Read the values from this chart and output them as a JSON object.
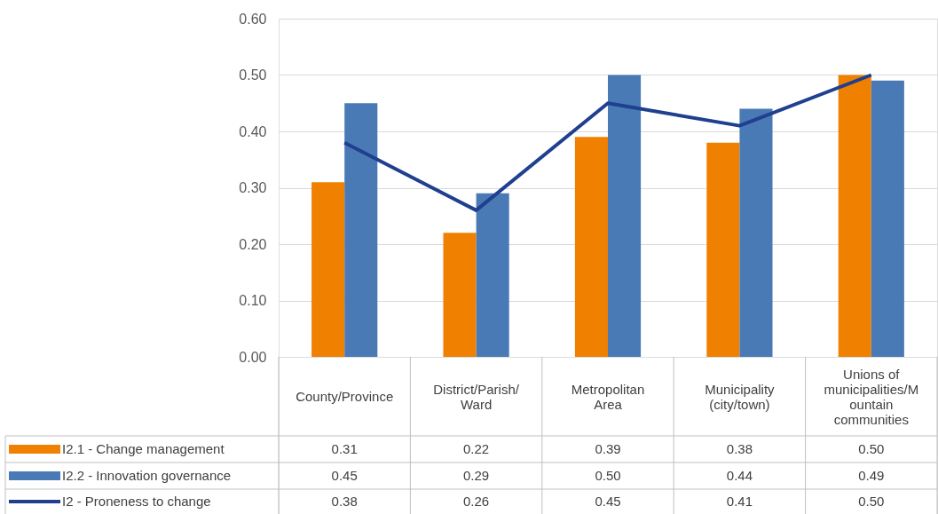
{
  "chart_data": {
    "type": "bar",
    "categories": [
      "County/Province",
      "District/Parish/Ward",
      "Metropolitan Area",
      "Municipality (city/town)",
      "Unions of municipalities/Mountain communities"
    ],
    "series": [
      {
        "name": "I2.1 - Change management",
        "color": "#f08000",
        "values": [
          0.31,
          0.22,
          0.39,
          0.38,
          0.5
        ],
        "value_labels": [
          "0.31",
          "0.22",
          "0.39",
          "0.38",
          "0.50"
        ]
      },
      {
        "name": "I2.2 - Innovation governance",
        "color": "#4a7ab5",
        "values": [
          0.45,
          0.29,
          0.5,
          0.44,
          0.49
        ],
        "value_labels": [
          "0.45",
          "0.29",
          "0.50",
          "0.44",
          "0.49"
        ]
      },
      {
        "name": "I2 - Proneness to change",
        "type": "line",
        "color": "#1f3f8f",
        "values": [
          0.38,
          0.26,
          0.45,
          0.41,
          0.5
        ],
        "value_labels": [
          "0.38",
          "0.26",
          "0.45",
          "0.41",
          "0.50"
        ]
      }
    ],
    "ylim": [
      0,
      0.6
    ],
    "yticks": [
      {
        "value": 0,
        "label": "0.00"
      },
      {
        "value": 0.1,
        "label": "0.10"
      },
      {
        "value": 0.2,
        "label": "0.20"
      },
      {
        "value": 0.3,
        "label": "0.30"
      },
      {
        "value": 0.4,
        "label": "0.40"
      },
      {
        "value": 0.5,
        "label": "0.50"
      },
      {
        "value": 0.6,
        "label": "0.60"
      }
    ],
    "grid": "y",
    "legend": "bottom left"
  }
}
